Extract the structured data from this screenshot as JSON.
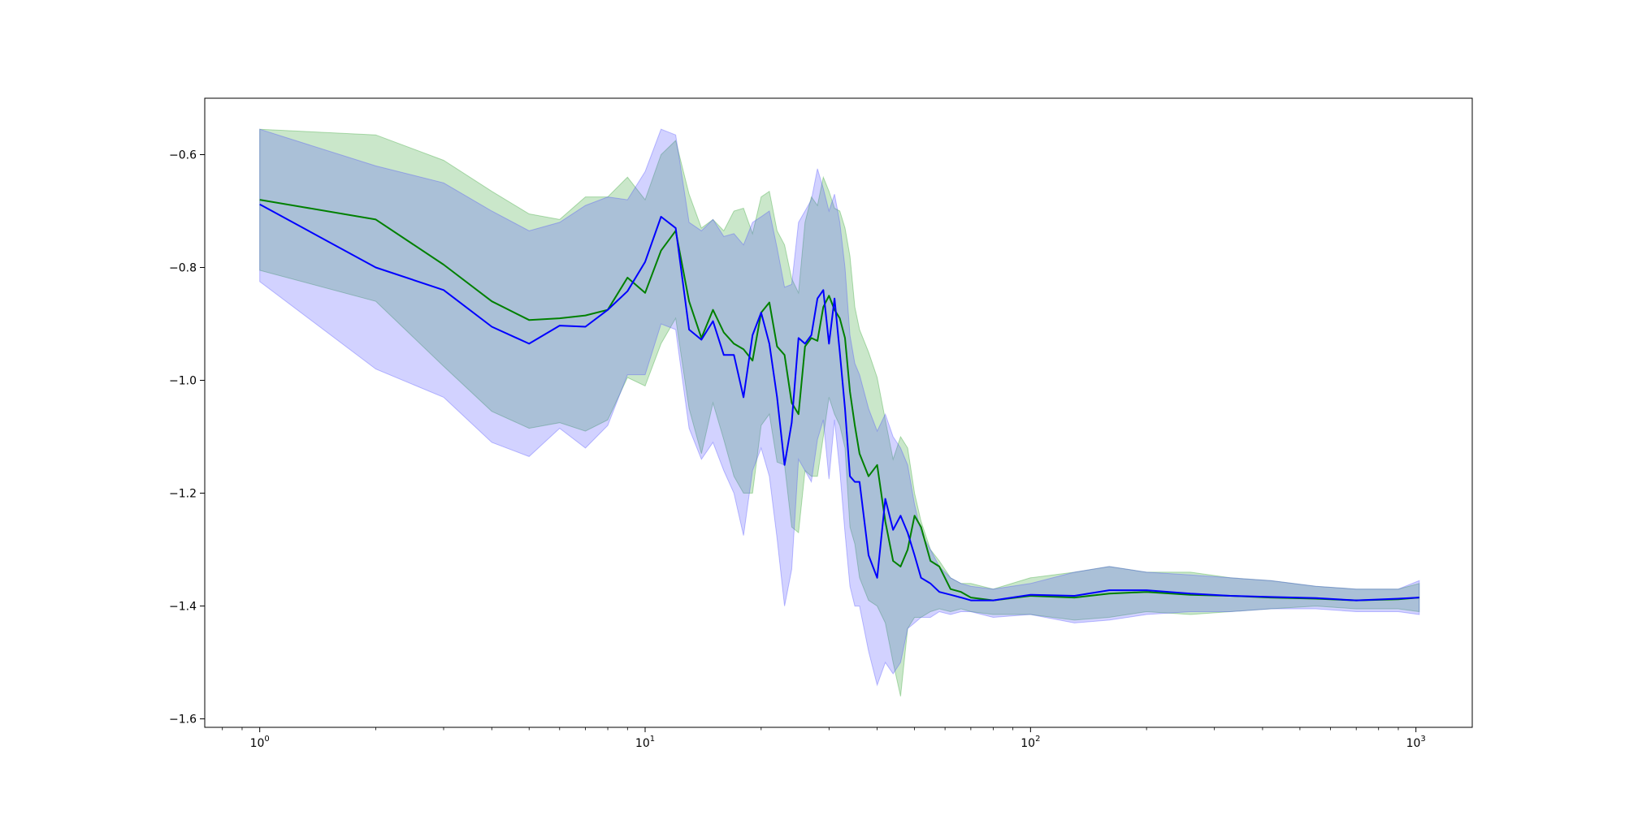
{
  "chart_data": {
    "type": "line",
    "title": "",
    "xlabel": "",
    "ylabel": "",
    "x_scale": "log",
    "xlim": [
      0.72,
      1400
    ],
    "ylim": [
      -1.615,
      -0.5
    ],
    "grid": false,
    "legend": "none",
    "x_tick_labels": [
      {
        "value": 1,
        "base": "10",
        "exp": "0"
      },
      {
        "value": 10,
        "base": "10",
        "exp": "1"
      },
      {
        "value": 100,
        "base": "10",
        "exp": "2"
      },
      {
        "value": 1000,
        "base": "10",
        "exp": "3"
      }
    ],
    "y_ticks": [
      -0.6,
      -0.8,
      -1.0,
      -1.2,
      -1.4,
      -1.6
    ],
    "y_tick_labels": [
      "−0.6",
      "−0.8",
      "−1.0",
      "−1.2",
      "−1.4",
      "−1.6"
    ],
    "series": [
      {
        "color": "#008000",
        "band_color": "#2ca02c",
        "x": [
          1,
          2,
          3,
          4,
          5,
          6,
          7,
          8,
          9,
          10,
          11,
          12,
          13,
          14,
          15,
          16,
          17,
          18,
          19,
          20,
          21,
          22,
          23,
          24,
          25,
          26,
          27,
          28,
          29,
          30,
          31,
          32,
          33,
          34,
          35,
          36,
          38,
          40,
          42,
          44,
          46,
          48,
          50,
          52,
          55,
          58,
          62,
          66,
          70,
          80,
          100,
          130,
          160,
          200,
          260,
          330,
          420,
          550,
          700,
          900,
          1020
        ],
        "values": [
          -0.68,
          -0.715,
          -0.795,
          -0.86,
          -0.893,
          -0.89,
          -0.885,
          -0.875,
          -0.818,
          -0.845,
          -0.77,
          -0.735,
          -0.86,
          -0.925,
          -0.875,
          -0.915,
          -0.935,
          -0.945,
          -0.965,
          -0.88,
          -0.862,
          -0.94,
          -0.955,
          -1.04,
          -1.06,
          -0.94,
          -0.925,
          -0.93,
          -0.87,
          -0.85,
          -0.875,
          -0.89,
          -0.925,
          -1.02,
          -1.08,
          -1.13,
          -1.17,
          -1.15,
          -1.25,
          -1.32,
          -1.33,
          -1.3,
          -1.24,
          -1.26,
          -1.32,
          -1.33,
          -1.37,
          -1.375,
          -1.385,
          -1.39,
          -1.382,
          -1.385,
          -1.378,
          -1.375,
          -1.38,
          -1.382,
          -1.385,
          -1.387,
          -1.39,
          -1.388,
          -1.385
        ],
        "upper": [
          -0.555,
          -0.565,
          -0.61,
          -0.665,
          -0.705,
          -0.715,
          -0.675,
          -0.675,
          -0.64,
          -0.68,
          -0.6,
          -0.575,
          -0.67,
          -0.73,
          -0.715,
          -0.735,
          -0.7,
          -0.695,
          -0.74,
          -0.675,
          -0.665,
          -0.735,
          -0.76,
          -0.82,
          -0.845,
          -0.72,
          -0.675,
          -0.69,
          -0.64,
          -0.665,
          -0.695,
          -0.7,
          -0.73,
          -0.78,
          -0.87,
          -0.91,
          -0.95,
          -0.995,
          -1.07,
          -1.14,
          -1.1,
          -1.12,
          -1.2,
          -1.25,
          -1.3,
          -1.32,
          -1.35,
          -1.36,
          -1.36,
          -1.37,
          -1.35,
          -1.34,
          -1.33,
          -1.34,
          -1.34,
          -1.35,
          -1.355,
          -1.365,
          -1.37,
          -1.37,
          -1.36
        ],
        "lower": [
          -0.805,
          -0.86,
          -0.975,
          -1.055,
          -1.085,
          -1.075,
          -1.09,
          -1.07,
          -0.995,
          -1.01,
          -0.935,
          -0.89,
          -1.05,
          -1.13,
          -1.04,
          -1.105,
          -1.17,
          -1.2,
          -1.2,
          -1.08,
          -1.06,
          -1.145,
          -1.15,
          -1.26,
          -1.27,
          -1.16,
          -1.17,
          -1.17,
          -1.1,
          -1.03,
          -1.06,
          -1.08,
          -1.12,
          -1.26,
          -1.29,
          -1.35,
          -1.39,
          -1.4,
          -1.43,
          -1.5,
          -1.56,
          -1.44,
          -1.42,
          -1.42,
          -1.41,
          -1.405,
          -1.41,
          -1.405,
          -1.41,
          -1.415,
          -1.415,
          -1.425,
          -1.42,
          -1.41,
          -1.415,
          -1.41,
          -1.405,
          -1.4,
          -1.405,
          -1.405,
          -1.41
        ]
      },
      {
        "color": "#0000ff",
        "band_color": "#4b4bff",
        "x": [
          1,
          2,
          3,
          4,
          5,
          6,
          7,
          8,
          9,
          10,
          11,
          12,
          13,
          14,
          15,
          16,
          17,
          18,
          19,
          20,
          21,
          22,
          23,
          24,
          25,
          26,
          27,
          28,
          29,
          30,
          31,
          32,
          33,
          34,
          35,
          36,
          38,
          40,
          42,
          44,
          46,
          48,
          50,
          52,
          55,
          58,
          62,
          66,
          70,
          80,
          100,
          130,
          160,
          200,
          260,
          330,
          420,
          550,
          700,
          900,
          1020
        ],
        "values": [
          -0.688,
          -0.8,
          -0.84,
          -0.905,
          -0.935,
          -0.903,
          -0.905,
          -0.875,
          -0.842,
          -0.79,
          -0.71,
          -0.73,
          -0.91,
          -0.928,
          -0.895,
          -0.955,
          -0.955,
          -1.03,
          -0.92,
          -0.88,
          -0.935,
          -1.03,
          -1.15,
          -1.075,
          -0.925,
          -0.935,
          -0.92,
          -0.855,
          -0.84,
          -0.935,
          -0.855,
          -0.95,
          -1.05,
          -1.17,
          -1.18,
          -1.18,
          -1.31,
          -1.35,
          -1.21,
          -1.265,
          -1.24,
          -1.27,
          -1.31,
          -1.35,
          -1.36,
          -1.375,
          -1.38,
          -1.385,
          -1.39,
          -1.39,
          -1.38,
          -1.382,
          -1.372,
          -1.372,
          -1.378,
          -1.382,
          -1.384,
          -1.386,
          -1.39,
          -1.387,
          -1.385
        ],
        "upper": [
          -0.555,
          -0.62,
          -0.65,
          -0.7,
          -0.735,
          -0.72,
          -0.69,
          -0.675,
          -0.68,
          -0.63,
          -0.555,
          -0.565,
          -0.72,
          -0.735,
          -0.715,
          -0.745,
          -0.74,
          -0.76,
          -0.72,
          -0.71,
          -0.7,
          -0.765,
          -0.835,
          -0.83,
          -0.72,
          -0.7,
          -0.68,
          -0.625,
          -0.66,
          -0.7,
          -0.67,
          -0.72,
          -0.8,
          -0.92,
          -0.97,
          -0.99,
          -1.05,
          -1.09,
          -1.06,
          -1.1,
          -1.12,
          -1.15,
          -1.22,
          -1.27,
          -1.3,
          -1.33,
          -1.35,
          -1.36,
          -1.365,
          -1.37,
          -1.36,
          -1.34,
          -1.33,
          -1.34,
          -1.345,
          -1.35,
          -1.355,
          -1.365,
          -1.37,
          -1.37,
          -1.355
        ],
        "lower": [
          -0.825,
          -0.98,
          -1.03,
          -1.11,
          -1.135,
          -1.085,
          -1.12,
          -1.08,
          -0.99,
          -0.99,
          -0.9,
          -0.91,
          -1.085,
          -1.14,
          -1.11,
          -1.16,
          -1.2,
          -1.275,
          -1.16,
          -1.12,
          -1.17,
          -1.28,
          -1.4,
          -1.335,
          -1.14,
          -1.16,
          -1.18,
          -1.105,
          -1.07,
          -1.175,
          -1.07,
          -1.16,
          -1.27,
          -1.365,
          -1.4,
          -1.4,
          -1.48,
          -1.54,
          -1.5,
          -1.52,
          -1.5,
          -1.44,
          -1.43,
          -1.42,
          -1.42,
          -1.41,
          -1.415,
          -1.41,
          -1.41,
          -1.42,
          -1.415,
          -1.43,
          -1.425,
          -1.415,
          -1.41,
          -1.41,
          -1.405,
          -1.405,
          -1.41,
          -1.41,
          -1.415
        ]
      }
    ]
  }
}
